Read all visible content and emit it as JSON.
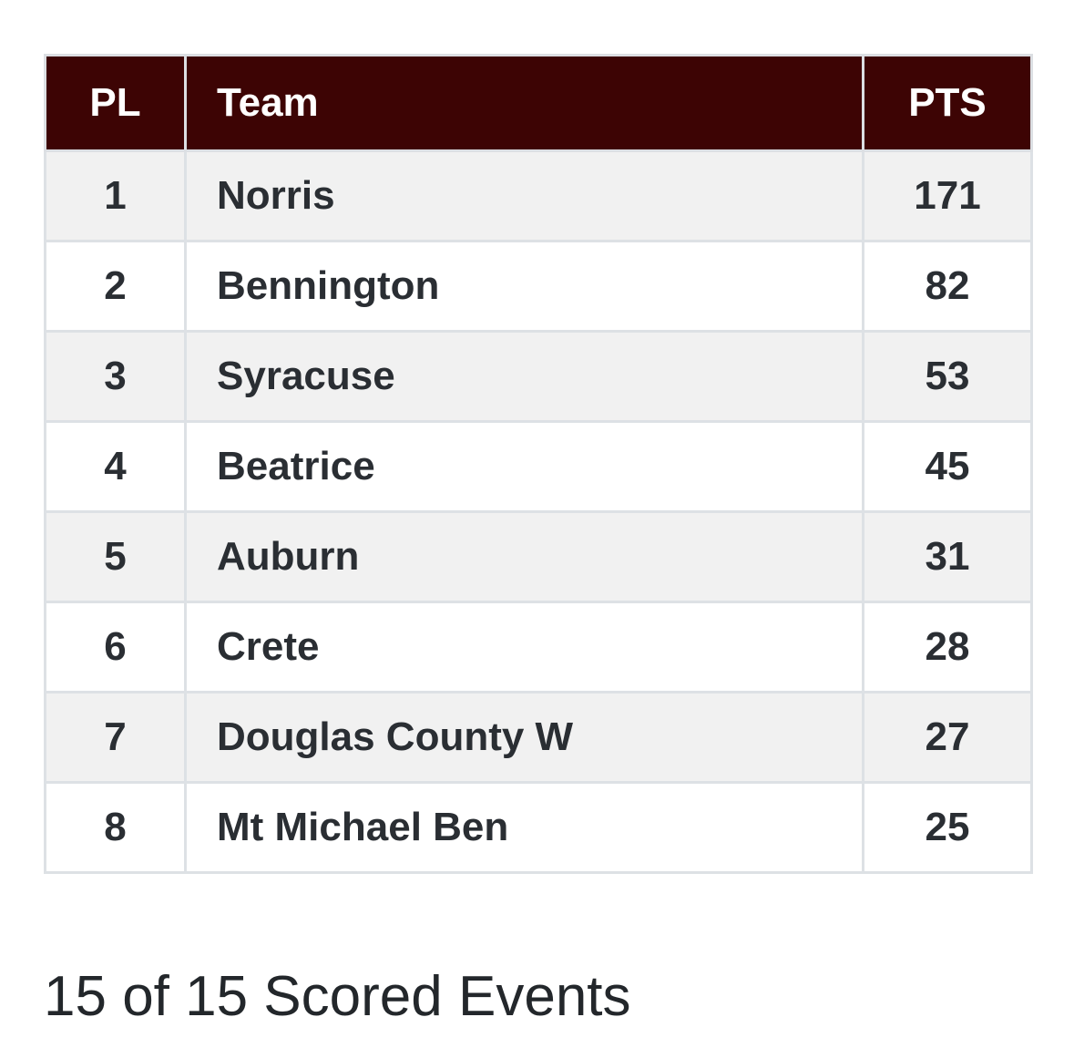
{
  "table": {
    "headers": {
      "place": "PL",
      "team": "Team",
      "points": "PTS"
    },
    "rows": [
      {
        "place": "1",
        "team": "Norris",
        "points": "171"
      },
      {
        "place": "2",
        "team": "Bennington",
        "points": "82"
      },
      {
        "place": "3",
        "team": "Syracuse",
        "points": "53"
      },
      {
        "place": "4",
        "team": "Beatrice",
        "points": "45"
      },
      {
        "place": "5",
        "team": "Auburn",
        "points": "31"
      },
      {
        "place": "6",
        "team": "Crete",
        "points": "28"
      },
      {
        "place": "7",
        "team": "Douglas County W",
        "points": "27"
      },
      {
        "place": "8",
        "team": "Mt Michael Ben",
        "points": "25"
      }
    ]
  },
  "footer": {
    "events_text": "15 of 15 Scored Events"
  },
  "colors": {
    "header_bg": "#3d0404",
    "header_text": "#ffffff",
    "row_alt_bg": "#f1f1f1",
    "border": "#dde1e5"
  }
}
